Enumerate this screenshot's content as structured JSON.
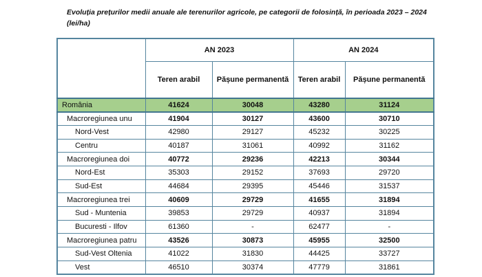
{
  "document": {
    "title_line1": "Evoluția prețurilor medii anuale ale terenurilor agricole, pe categorii de folosință, în perioada 2023 – 2024",
    "title_line2": "(lei/ha)"
  },
  "table": {
    "year_headers": [
      {
        "label": "AN 2023"
      },
      {
        "label": "AN 2024"
      }
    ],
    "column_headers": [
      "Teren arabil",
      "Pășune permanentă",
      "Teren arabil",
      "Pășune permanentă"
    ],
    "rows": [
      {
        "label": "România",
        "level": 0,
        "emphasis": true,
        "highlight": true,
        "values": [
          "41624",
          "30048",
          "43280",
          "31124"
        ]
      },
      {
        "label": "Macroregiunea unu",
        "level": 1,
        "emphasis": true,
        "highlight": false,
        "values": [
          "41904",
          "30127",
          "43600",
          "30710"
        ]
      },
      {
        "label": "Nord-Vest",
        "level": 2,
        "emphasis": false,
        "highlight": false,
        "values": [
          "42980",
          "29127",
          "45232",
          "30225"
        ]
      },
      {
        "label": "Centru",
        "level": 2,
        "emphasis": false,
        "highlight": false,
        "values": [
          "40187",
          "31061",
          "40992",
          "31162"
        ]
      },
      {
        "label": "Macroregiunea doi",
        "level": 1,
        "emphasis": true,
        "highlight": false,
        "values": [
          "40772",
          "29236",
          "42213",
          "30344"
        ]
      },
      {
        "label": "Nord-Est",
        "level": 2,
        "emphasis": false,
        "highlight": false,
        "values": [
          "35303",
          "29152",
          "37693",
          "29720"
        ]
      },
      {
        "label": "Sud-Est",
        "level": 2,
        "emphasis": false,
        "highlight": false,
        "values": [
          "44684",
          "29395",
          "45446",
          "31537"
        ]
      },
      {
        "label": "Macroregiunea trei",
        "level": 1,
        "emphasis": true,
        "highlight": false,
        "values": [
          "40609",
          "29729",
          "41655",
          "31894"
        ]
      },
      {
        "label": "Sud - Muntenia",
        "level": 2,
        "emphasis": false,
        "highlight": false,
        "values": [
          "39853",
          "29729",
          "40937",
          "31894"
        ]
      },
      {
        "label": "Bucuresti - Ilfov",
        "level": 2,
        "emphasis": false,
        "highlight": false,
        "values": [
          "61360",
          "-",
          "62477",
          "-"
        ]
      },
      {
        "label": "Macroregiunea patru",
        "level": 1,
        "emphasis": true,
        "highlight": false,
        "values": [
          "43526",
          "30873",
          "45955",
          "32500"
        ]
      },
      {
        "label": "Sud-Vest Oltenia",
        "level": 2,
        "emphasis": false,
        "highlight": false,
        "values": [
          "41022",
          "31830",
          "44425",
          "33727"
        ]
      },
      {
        "label": "Vest",
        "level": 2,
        "emphasis": false,
        "highlight": false,
        "values": [
          "46510",
          "30374",
          "47779",
          "31861"
        ]
      }
    ]
  },
  "colors": {
    "highlight_green": "#A6CF8D",
    "table_border": "#54849E",
    "table_border_dark": "#41758F"
  }
}
